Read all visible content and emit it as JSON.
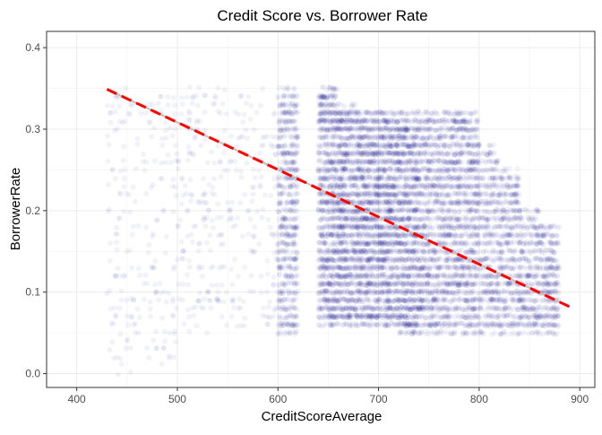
{
  "chart_data": {
    "type": "scatter",
    "title": "Credit Score vs. Borrower Rate",
    "xlabel": "CreditScoreAverage",
    "ylabel": "BorrowerRate",
    "xlim": [
      370,
      915
    ],
    "ylim": [
      -0.017,
      0.42
    ],
    "x_ticks": [
      400,
      500,
      600,
      700,
      800,
      900
    ],
    "y_ticks": [
      0.0,
      0.1,
      0.2,
      0.3,
      0.4
    ],
    "y_tick_labels": [
      "0.0",
      "0.1",
      "0.2",
      "0.3",
      "0.4"
    ],
    "grid": true,
    "point_color": "#00008b",
    "point_opacity": 0.05,
    "trend_color": "#ff0000",
    "smooth_color": "#bfbfbf",
    "series": [
      {
        "values": [
          {
            "x_range": [
              600,
              620
            ],
            "y_range": [
              0.05,
              0.35
            ],
            "density": "high"
          },
          {
            "x_range": [
              640,
              660
            ],
            "y_range": [
              0.06,
              0.35
            ],
            "density": "very-high"
          },
          {
            "x_range": [
              660,
              680
            ],
            "y_range": [
              0.06,
              0.33
            ],
            "density": "very-high"
          },
          {
            "x_range": [
              680,
              700
            ],
            "y_range": [
              0.06,
              0.32
            ],
            "density": "very-high"
          },
          {
            "x_range": [
              700,
              720
            ],
            "y_range": [
              0.06,
              0.32
            ],
            "density": "very-high"
          },
          {
            "x_range": [
              720,
              740
            ],
            "y_range": [
              0.05,
              0.32
            ],
            "density": "very-high"
          },
          {
            "x_range": [
              740,
              760
            ],
            "y_range": [
              0.05,
              0.32
            ],
            "density": "high"
          },
          {
            "x_range": [
              760,
              780
            ],
            "y_range": [
              0.05,
              0.32
            ],
            "density": "high"
          },
          {
            "x_range": [
              780,
              800
            ],
            "y_range": [
              0.05,
              0.32
            ],
            "density": "high"
          },
          {
            "x_range": [
              800,
              820
            ],
            "y_range": [
              0.05,
              0.28
            ],
            "density": "medium"
          },
          {
            "x_range": [
              820,
              840
            ],
            "y_range": [
              0.05,
              0.25
            ],
            "density": "medium"
          },
          {
            "x_range": [
              840,
              860
            ],
            "y_range": [
              0.05,
              0.2
            ],
            "density": "low"
          },
          {
            "x_range": [
              860,
              880
            ],
            "y_range": [
              0.05,
              0.18
            ],
            "density": "low"
          },
          {
            "x_range": [
              500,
              600
            ],
            "y_range": [
              0.05,
              0.35
            ],
            "density": "low"
          },
          {
            "x_range": [
              430,
              500
            ],
            "y_range": [
              0.0,
              0.35
            ],
            "density": "very-low"
          }
        ]
      },
      {
        "type": "line",
        "style": "dashed",
        "x": [
          430,
          890
        ],
        "y": [
          0.349,
          0.082
        ]
      }
    ]
  }
}
